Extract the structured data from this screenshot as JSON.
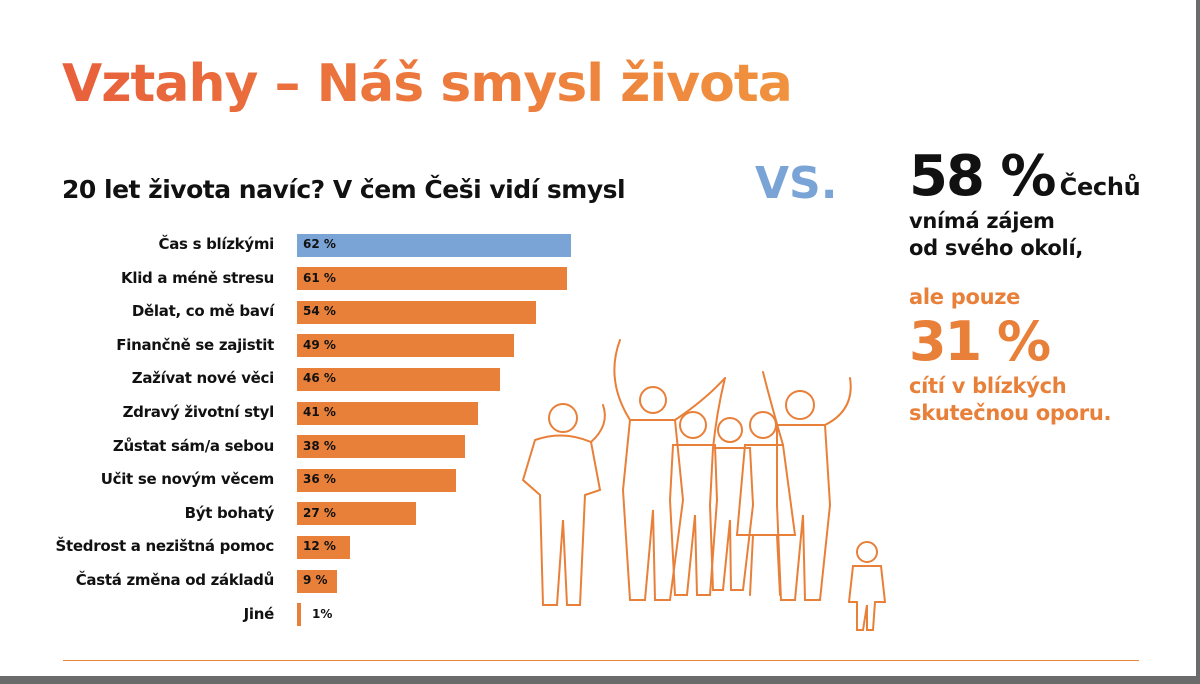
{
  "title": "Vztahy – Náš smysl života",
  "colors": {
    "accent": "#e8803a",
    "highlight": "#7aa3d6",
    "title_start": "#e8603c",
    "title_end": "#f0923e"
  },
  "chart_data": {
    "type": "bar",
    "orientation": "horizontal",
    "title": "20 let života navíc? V čem Češi vidí smysl",
    "categories": [
      "Čas s blízkými",
      "Klid a méně stresu",
      "Dělat, co mě baví",
      "Finančně se zajistit",
      "Zažívat nové věci",
      "Zdravý životní styl",
      "Zůstat sám/a sebou",
      "Učit se novým věcem",
      "Být bohatý",
      "Štedrost a nezištná pomoc",
      "Častá změna od základů",
      "Jiné"
    ],
    "values": [
      62,
      61,
      54,
      49,
      46,
      41,
      38,
      36,
      27,
      12,
      9,
      1
    ],
    "value_labels": [
      "62 %",
      "61 %",
      "54 %",
      "49 %",
      "46 %",
      "41 %",
      "38 %",
      "36 %",
      "27 %",
      "12 %",
      "9 %",
      "1%"
    ],
    "highlighted_category": "Čas s blízkými",
    "xlim": [
      0,
      62
    ],
    "grid": false
  },
  "vs_label": "VS.",
  "stat": {
    "big1": "58 %",
    "line1_suffix": "Čechů",
    "line2": "vnímá zájem",
    "line3": "od svého okolí,",
    "line4": "ale pouze",
    "big2": "31 %",
    "line5": "cítí v blízkých",
    "line6": "skutečnou oporu."
  },
  "illustration": "group-of-people-line-art"
}
